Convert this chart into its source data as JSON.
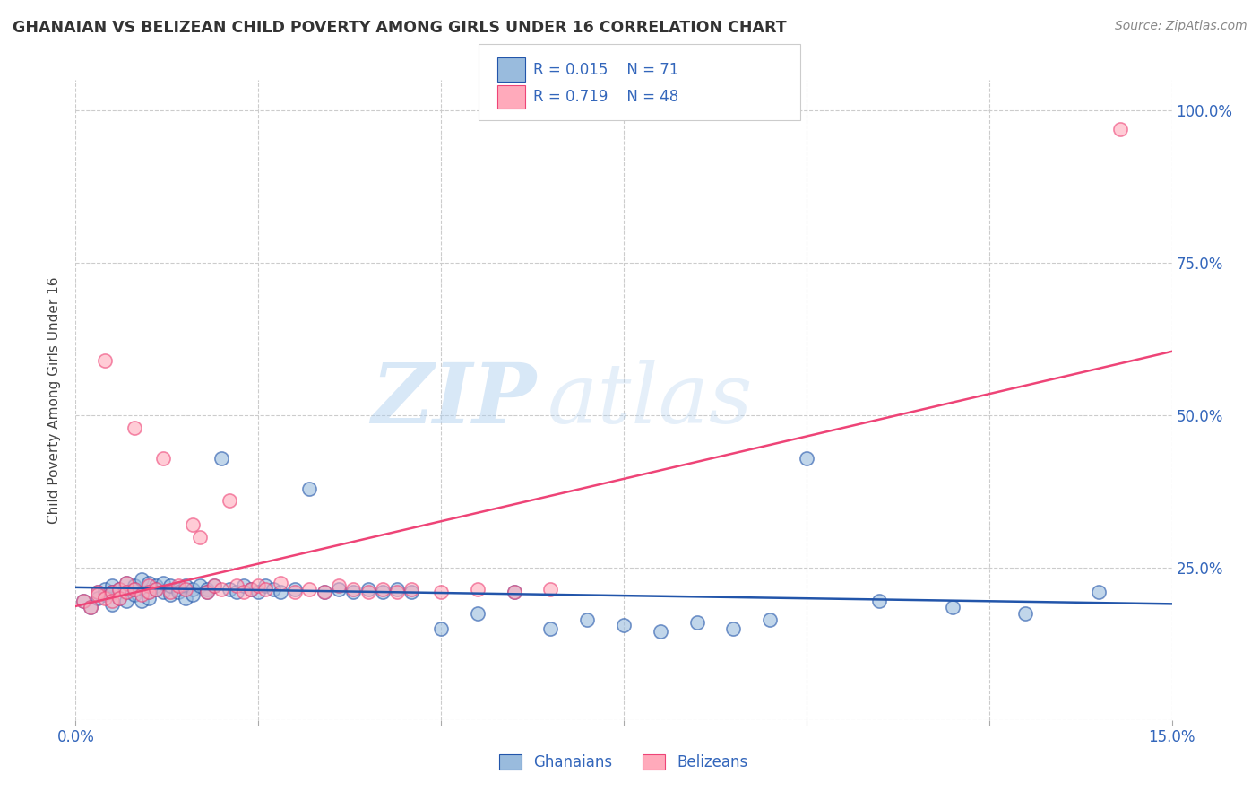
{
  "title": "GHANAIAN VS BELIZEAN CHILD POVERTY AMONG GIRLS UNDER 16 CORRELATION CHART",
  "source": "Source: ZipAtlas.com",
  "ylabel": "Child Poverty Among Girls Under 16",
  "xlim": [
    0.0,
    0.15
  ],
  "ylim": [
    0.0,
    1.05
  ],
  "xticks": [
    0.0,
    0.025,
    0.05,
    0.075,
    0.1,
    0.125,
    0.15
  ],
  "xticklabels": [
    "0.0%",
    "",
    "",
    "",
    "",
    "",
    "15.0%"
  ],
  "ytick_positions": [
    0.0,
    0.25,
    0.5,
    0.75,
    1.0
  ],
  "yticklabels_right": [
    "",
    "25.0%",
    "50.0%",
    "75.0%",
    "100.0%"
  ],
  "ghanaian_color": "#99BBDD",
  "belizean_color": "#FFAABB",
  "trendline_ghanaian_color": "#2255AA",
  "trendline_belizean_color": "#EE4477",
  "tick_color": "#3366BB",
  "watermark_zip": "ZIP",
  "watermark_atlas": "atlas",
  "background_color": "#FFFFFF",
  "grid_color": "#CCCCCC",
  "gh_x": [
    0.001,
    0.002,
    0.003,
    0.003,
    0.004,
    0.004,
    0.005,
    0.005,
    0.005,
    0.006,
    0.006,
    0.007,
    0.007,
    0.007,
    0.008,
    0.008,
    0.008,
    0.009,
    0.009,
    0.01,
    0.01,
    0.01,
    0.011,
    0.011,
    0.012,
    0.012,
    0.013,
    0.013,
    0.014,
    0.014,
    0.015,
    0.015,
    0.016,
    0.016,
    0.017,
    0.018,
    0.018,
    0.019,
    0.02,
    0.021,
    0.022,
    0.023,
    0.024,
    0.025,
    0.026,
    0.027,
    0.028,
    0.03,
    0.032,
    0.034,
    0.036,
    0.038,
    0.04,
    0.042,
    0.044,
    0.046,
    0.05,
    0.055,
    0.06,
    0.065,
    0.07,
    0.075,
    0.08,
    0.085,
    0.09,
    0.095,
    0.1,
    0.11,
    0.12,
    0.13,
    0.14
  ],
  "gh_y": [
    0.195,
    0.185,
    0.21,
    0.2,
    0.215,
    0.205,
    0.22,
    0.21,
    0.19,
    0.215,
    0.2,
    0.225,
    0.21,
    0.195,
    0.22,
    0.205,
    0.215,
    0.23,
    0.195,
    0.225,
    0.21,
    0.2,
    0.22,
    0.215,
    0.21,
    0.225,
    0.205,
    0.22,
    0.215,
    0.21,
    0.22,
    0.2,
    0.215,
    0.205,
    0.22,
    0.215,
    0.21,
    0.22,
    0.43,
    0.215,
    0.21,
    0.22,
    0.215,
    0.21,
    0.22,
    0.215,
    0.21,
    0.215,
    0.38,
    0.21,
    0.215,
    0.21,
    0.215,
    0.21,
    0.215,
    0.21,
    0.15,
    0.175,
    0.21,
    0.15,
    0.165,
    0.155,
    0.145,
    0.16,
    0.15,
    0.165,
    0.43,
    0.195,
    0.185,
    0.175,
    0.21
  ],
  "bz_x": [
    0.001,
    0.002,
    0.003,
    0.003,
    0.004,
    0.004,
    0.005,
    0.005,
    0.006,
    0.006,
    0.007,
    0.007,
    0.008,
    0.008,
    0.009,
    0.01,
    0.01,
    0.011,
    0.012,
    0.013,
    0.014,
    0.015,
    0.016,
    0.017,
    0.018,
    0.019,
    0.02,
    0.021,
    0.022,
    0.023,
    0.024,
    0.025,
    0.026,
    0.028,
    0.03,
    0.032,
    0.034,
    0.036,
    0.038,
    0.04,
    0.042,
    0.044,
    0.046,
    0.05,
    0.055,
    0.06,
    0.065,
    0.143
  ],
  "bz_y": [
    0.195,
    0.185,
    0.21,
    0.205,
    0.2,
    0.59,
    0.21,
    0.195,
    0.215,
    0.2,
    0.225,
    0.21,
    0.215,
    0.48,
    0.205,
    0.22,
    0.21,
    0.215,
    0.43,
    0.21,
    0.22,
    0.215,
    0.32,
    0.3,
    0.21,
    0.22,
    0.215,
    0.36,
    0.22,
    0.21,
    0.215,
    0.22,
    0.215,
    0.225,
    0.21,
    0.215,
    0.21,
    0.22,
    0.215,
    0.21,
    0.215,
    0.21,
    0.215,
    0.21,
    0.215,
    0.21,
    0.215,
    0.97
  ]
}
